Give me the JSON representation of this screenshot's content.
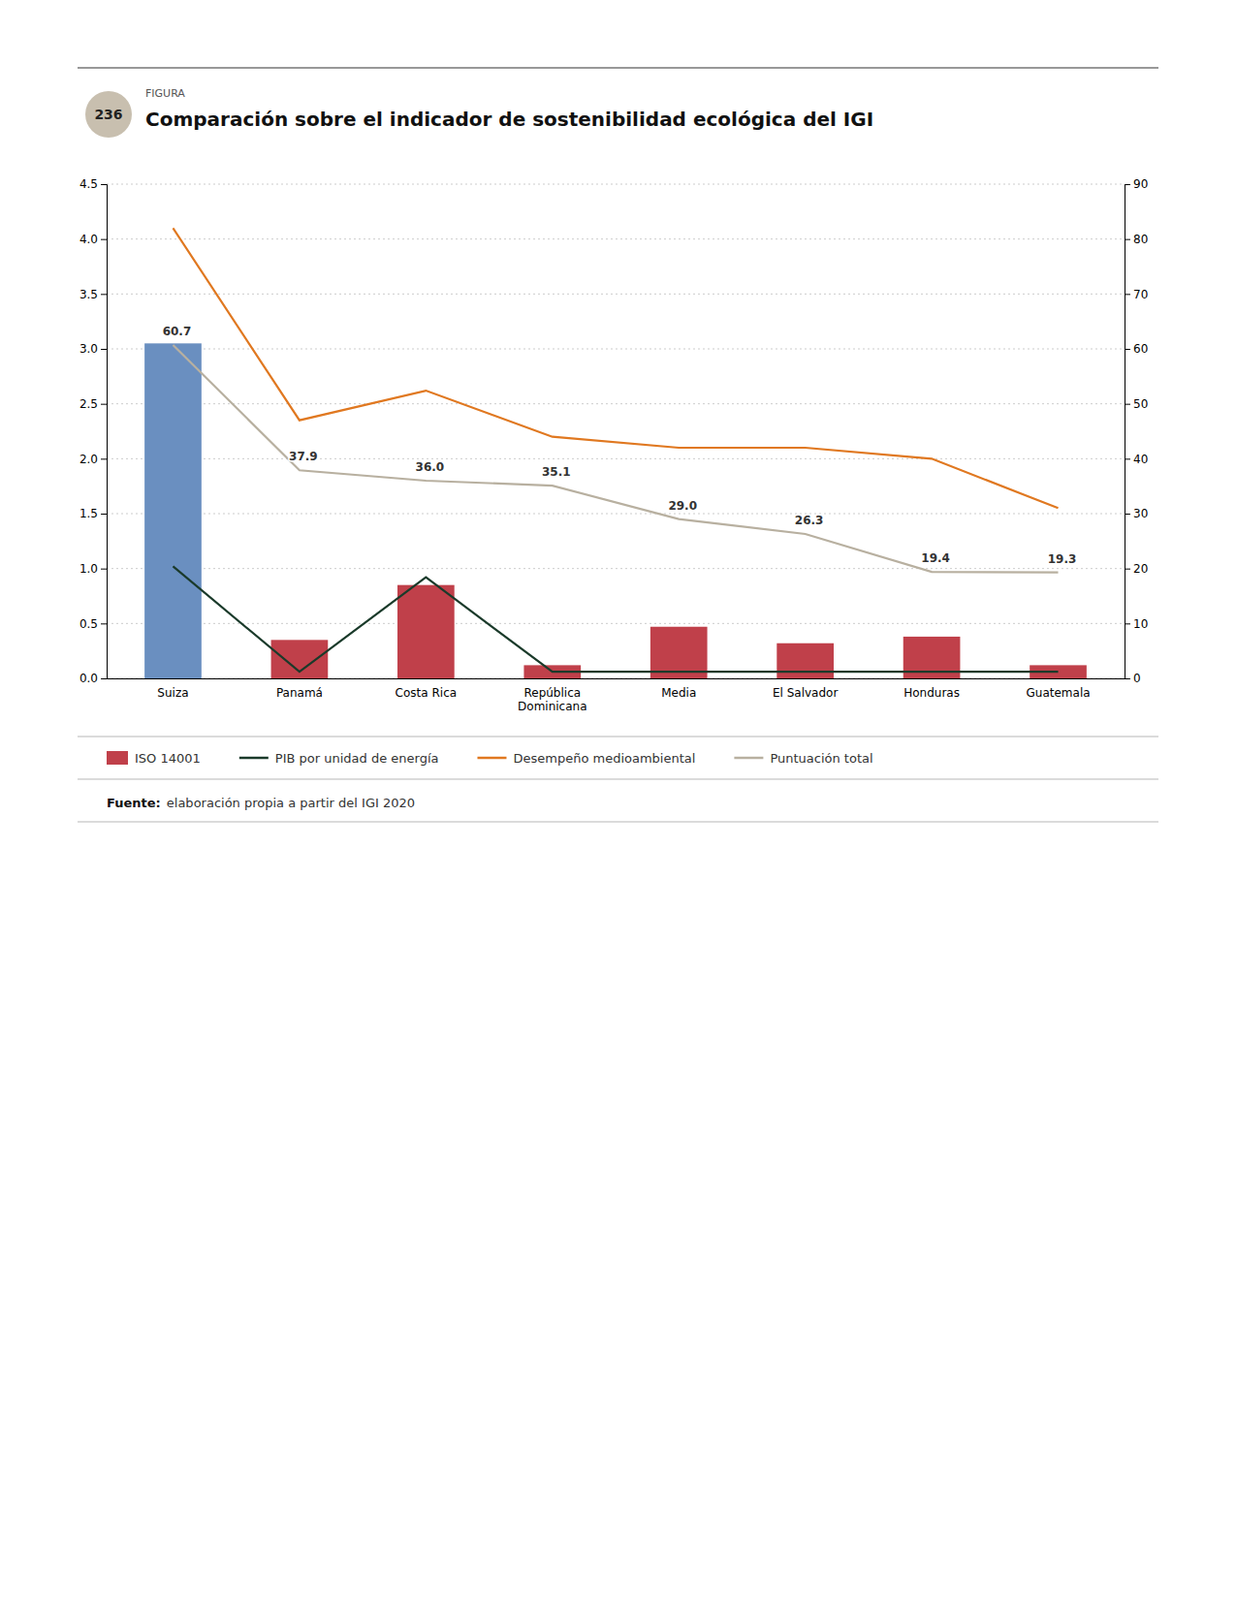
{
  "chart_data": {
    "type": "bar",
    "title": "Comparación sobre el indicador de sostenibilidad ecológica del IGI",
    "figure_label": "236",
    "figure_tag": "FIGURA",
    "source_label": "Fuente:",
    "source": "elaboración propia a partir del IGI 2020",
    "categories": [
      "Suiza",
      "Panamá",
      "Costa Rica",
      "República\nDominicana",
      "Media",
      "El Salvador",
      "Honduras",
      "Guatemala"
    ],
    "series": [
      {
        "name": "ISO 14001",
        "type": "bar",
        "color": "#c0404a",
        "colors": [
          "#6a8fc0",
          "#c0404a",
          "#c0404a",
          "#c0404a",
          "#c0404a",
          "#c0404a",
          "#c0404a",
          "#c0404a"
        ],
        "values": [
          3.05,
          0.35,
          0.85,
          0.12,
          0.47,
          0.32,
          0.38,
          0.12
        ]
      },
      {
        "name": "PIB por unidad de energía",
        "type": "line",
        "color": "#1a3a2a",
        "values": [
          1.02,
          0.06,
          0.92,
          0.06,
          0.06,
          0.06,
          0.06,
          0.06
        ]
      },
      {
        "name": "Desempeño medioambiental",
        "type": "line",
        "color": "#e07820",
        "values": [
          4.1,
          2.35,
          2.62,
          2.2,
          2.1,
          2.1,
          2.0,
          1.55
        ]
      },
      {
        "name": "Puntuación total",
        "type": "line",
        "axis": "y2",
        "color": "#b8b0a0",
        "data_labels": true,
        "values": [
          60.7,
          37.9,
          36.0,
          35.1,
          29.0,
          26.3,
          19.4,
          19.3
        ],
        "value_labels": [
          "60.7",
          "37.9",
          "36.0",
          "35.1",
          "29.0",
          "26.3",
          "19.4",
          "19.3"
        ]
      }
    ],
    "ylim": [
      0,
      4.5
    ],
    "yticks": [
      {
        "value": 0,
        "label": "0.0"
      },
      0.5,
      {
        "value": 1,
        "label": "1.0"
      },
      1.5,
      {
        "value": 2,
        "label": "2.0"
      },
      2.5,
      {
        "value": 3,
        "label": "3.0"
      },
      3.5,
      {
        "value": 4,
        "label": "4.0"
      },
      4.5
    ],
    "y2lim": [
      0,
      90
    ],
    "y2ticks": [
      0,
      10,
      20,
      30,
      40,
      50,
      60,
      70,
      80,
      90
    ],
    "grid": true,
    "legend": "bottom"
  }
}
